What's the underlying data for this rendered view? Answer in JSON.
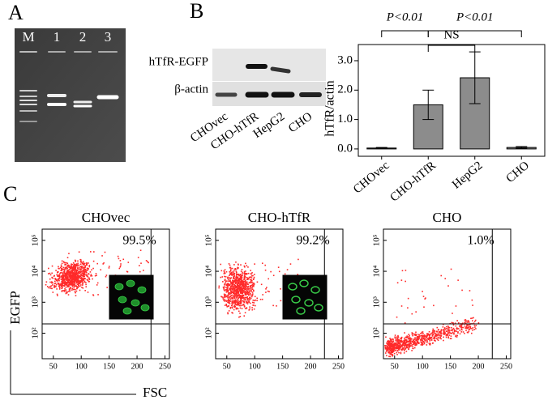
{
  "panel_a": {
    "label": "A",
    "lanes": [
      "M",
      "1",
      "2",
      "3"
    ]
  },
  "panel_b": {
    "label": "B",
    "blot_rows": [
      "hTfR-EGFP",
      "β-actin"
    ],
    "blot_lanes": [
      "CHOvec",
      "CHO-hTfR",
      "HepG2",
      "CHO"
    ]
  },
  "chart_data": {
    "type": "bar",
    "ylabel": "hTfR/actin",
    "categories": [
      "CHOvec",
      "CHO-hTfR",
      "HepG2",
      "CHO"
    ],
    "values": [
      0.03,
      1.5,
      2.42,
      0.05
    ],
    "errors": [
      0.02,
      0.5,
      0.88,
      0.03
    ],
    "color": "#8c8c8c",
    "ylim": [
      -0.25,
      3.55
    ],
    "yticks": [
      {
        "value": 0,
        "label": "0.0"
      },
      {
        "value": 1,
        "label": "1.0"
      },
      {
        "value": 2,
        "label": "2.0"
      },
      {
        "value": 3,
        "label": "3.0"
      }
    ],
    "annotations": [
      "P<0.01",
      "P<0.01",
      "NS"
    ]
  },
  "panel_c": {
    "label": "C",
    "ylabel": "EGFP",
    "xlabel": "FSC",
    "plots": [
      {
        "title": "CHOvec",
        "percent": "99.5%"
      },
      {
        "title": "CHO-hTfR",
        "percent": "99.2%"
      },
      {
        "title": "CHO",
        "percent": "1.0%"
      }
    ],
    "xlim": [
      30,
      258
    ],
    "xticks": [
      50,
      100,
      150,
      200,
      250
    ],
    "ylim": [
      15,
      230000
    ],
    "log_y": true,
    "yticks": [
      {
        "value": 100,
        "label": "10²"
      },
      {
        "value": 1000,
        "label": "10³"
      },
      {
        "value": 10000,
        "label": "10⁴"
      },
      {
        "value": 100000,
        "label": "10⁵"
      }
    ]
  }
}
